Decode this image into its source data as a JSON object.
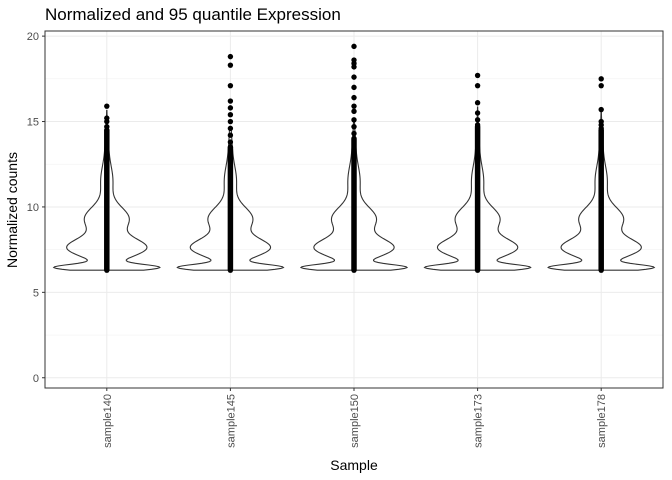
{
  "chart_data": {
    "type": "violin",
    "title": "Normalized and 95 quantile Expression",
    "xlabel": "Sample",
    "ylabel": "Normalized counts",
    "categories": [
      "sample140",
      "sample145",
      "sample150",
      "sample173",
      "sample178"
    ],
    "y_ticks": [
      0,
      5,
      10,
      15,
      20
    ],
    "ylim": [
      -0.6,
      20.3
    ],
    "grid": true,
    "theme": "bw",
    "distribution_min": 6.3,
    "distribution_max_continuous": [
      14.5,
      13.5,
      14.0,
      14.7,
      14.5
    ],
    "outliers": [
      [
        14.7,
        15.0,
        15.2,
        15.9
      ],
      [
        13.8,
        14.2,
        14.6,
        15.0,
        15.4,
        15.8,
        16.2,
        17.1,
        18.3,
        18.8
      ],
      [
        14.3,
        14.7,
        15.1,
        15.6,
        15.9,
        16.4,
        17.0,
        17.6,
        18.2,
        18.4,
        18.6,
        19.4
      ],
      [
        14.8,
        15.1,
        15.5,
        16.1,
        17.1,
        17.7
      ],
      [
        14.6,
        14.8,
        15.0,
        15.7,
        17.1,
        17.5
      ]
    ],
    "colors": {
      "violin_stroke": "#333333",
      "points": "#000000",
      "grid_major": "#ebebeb",
      "grid_minor": "#f2f2f2",
      "panel_border": "#333333"
    }
  }
}
